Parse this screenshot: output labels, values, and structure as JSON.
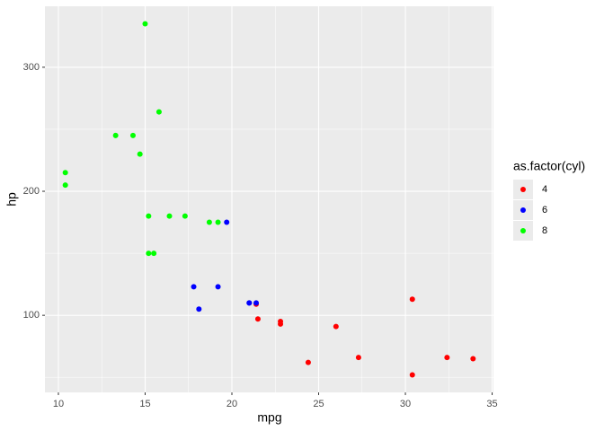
{
  "chart_data": {
    "type": "scatter",
    "x_label": "mpg",
    "y_label": "hp",
    "legend_title": "as.factor(cyl)",
    "legend_position": "right",
    "grid": true,
    "xlim": [
      9.225,
      35.075
    ],
    "xticks": [
      10,
      15,
      20,
      25,
      30,
      35
    ],
    "xminor_ticks": [
      12.5,
      17.5,
      22.5,
      27.5,
      32.5
    ],
    "ylim": [
      37.85,
      349.15
    ],
    "yticks": [
      100,
      200,
      300
    ],
    "yminor_ticks": [
      50,
      150,
      250
    ],
    "series": [
      {
        "name": "4",
        "color": "#ff0000",
        "x": [
          22.8,
          24.4,
          22.8,
          32.4,
          30.4,
          33.9,
          21.5,
          27.3,
          26.0,
          30.4,
          21.4
        ],
        "values": [
          93,
          62,
          95,
          66,
          52,
          65,
          97,
          66,
          91,
          113,
          109
        ]
      },
      {
        "name": "6",
        "color": "#0000ff",
        "x": [
          21.0,
          21.0,
          21.4,
          18.1,
          19.2,
          17.8,
          19.7
        ],
        "values": [
          110,
          110,
          110,
          105,
          123,
          123,
          175
        ]
      },
      {
        "name": "8",
        "color": "#00ff00",
        "x": [
          18.7,
          14.3,
          16.4,
          17.3,
          15.2,
          10.4,
          10.4,
          14.7,
          15.5,
          15.2,
          13.3,
          19.2,
          15.8,
          15.0
        ],
        "values": [
          175,
          245,
          180,
          180,
          180,
          205,
          215,
          230,
          150,
          150,
          245,
          175,
          264,
          335
        ]
      }
    ]
  }
}
